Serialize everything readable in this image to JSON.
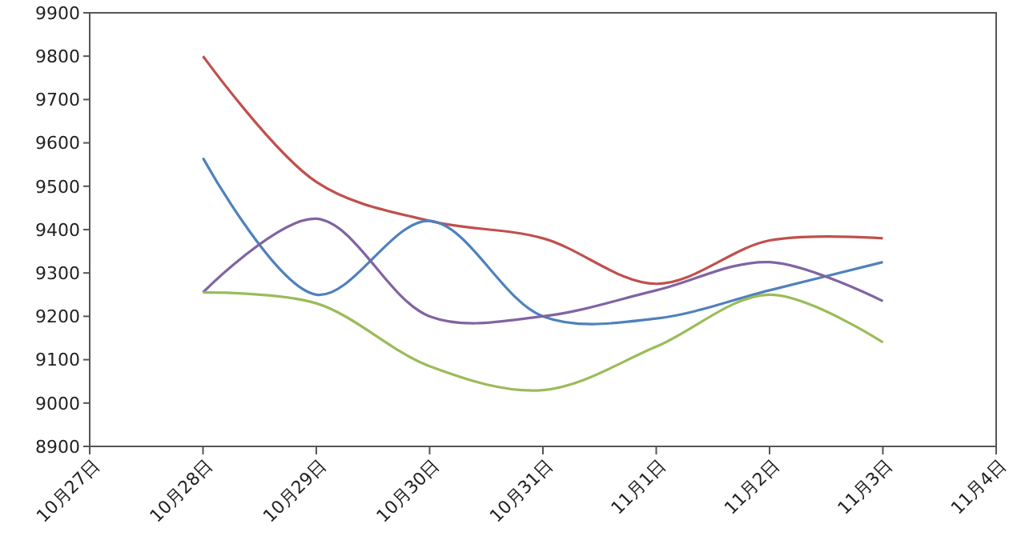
{
  "chart_data": {
    "type": "line",
    "x": [
      "--10-28",
      "--10-29",
      "--10-30",
      "--10-31",
      "--11-01",
      "--11-02",
      "--11-03"
    ],
    "series": [
      {
        "color": "#c0504d",
        "values": [
          9800,
          9510,
          9420,
          9380,
          9275,
          9375,
          9380
        ]
      },
      {
        "color": "#4f81bd",
        "values": [
          9565,
          9250,
          9420,
          9200,
          9195,
          9260,
          9325
        ]
      },
      {
        "color": "#8064a2",
        "values": [
          9255,
          9425,
          9200,
          9200,
          9260,
          9325,
          9235
        ]
      },
      {
        "color": "#9bbb59",
        "values": [
          9255,
          9230,
          9085,
          9030,
          9130,
          9250,
          9140
        ]
      }
    ],
    "xlim": [
      "--10-27",
      "--11-04"
    ],
    "xticks": [
      {
        "value": "--10-27",
        "label": "10月27日"
      },
      {
        "value": "--10-28",
        "label": "10月28日"
      },
      {
        "value": "--10-29",
        "label": "10月29日"
      },
      {
        "value": "--10-30",
        "label": "10月30日"
      },
      {
        "value": "--10-31",
        "label": "10月31日"
      },
      {
        "value": "--11-01",
        "label": "11月1日"
      },
      {
        "value": "--11-02",
        "label": "11月2日"
      },
      {
        "value": "--11-03",
        "label": "11月3日"
      },
      {
        "value": "--11-04",
        "label": "11月4日"
      }
    ],
    "ylim": [
      8900,
      9900
    ],
    "yticks": [
      8900,
      9000,
      9100,
      9200,
      9300,
      9400,
      9500,
      9600,
      9700,
      9800,
      9900
    ],
    "grid": false,
    "marker": "none",
    "line_style": "solid"
  }
}
